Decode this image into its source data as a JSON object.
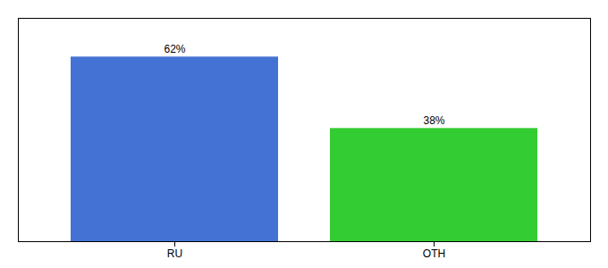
{
  "chart_data": {
    "type": "bar",
    "categories": [
      "RU",
      "OTH"
    ],
    "values": [
      62,
      38
    ],
    "value_labels": [
      "62%",
      "38%"
    ],
    "colors": [
      "#4472d4",
      "#33cc33"
    ],
    "ylim": [
      0,
      75
    ],
    "data_labels": true,
    "tick_labels": "x"
  }
}
